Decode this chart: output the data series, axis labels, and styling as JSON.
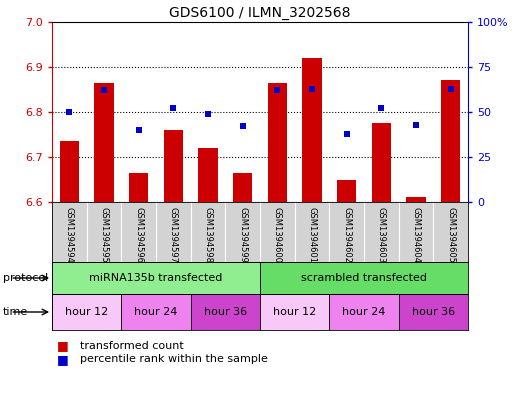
{
  "title": "GDS6100 / ILMN_3202568",
  "samples": [
    "GSM1394594",
    "GSM1394595",
    "GSM1394596",
    "GSM1394597",
    "GSM1394598",
    "GSM1394599",
    "GSM1394600",
    "GSM1394601",
    "GSM1394602",
    "GSM1394603",
    "GSM1394604",
    "GSM1394605"
  ],
  "red_values": [
    6.735,
    6.865,
    6.665,
    6.76,
    6.72,
    6.665,
    6.865,
    6.92,
    6.648,
    6.775,
    6.61,
    6.87
  ],
  "blue_values": [
    50,
    62,
    40,
    52,
    49,
    42,
    62,
    63,
    38,
    52,
    43,
    63
  ],
  "ylim_left": [
    6.6,
    7.0
  ],
  "ylim_right": [
    0,
    100
  ],
  "yticks_left": [
    6.6,
    6.7,
    6.8,
    6.9,
    7.0
  ],
  "yticks_right": [
    0,
    25,
    50,
    75,
    100
  ],
  "ytick_labels_right": [
    "0",
    "25",
    "50",
    "75",
    "100%"
  ],
  "protocol_groups": [
    {
      "label": "miRNA135b transfected",
      "start": 0,
      "end": 6,
      "color": "#90ee90"
    },
    {
      "label": "scrambled transfected",
      "start": 6,
      "end": 12,
      "color": "#66dd66"
    }
  ],
  "time_groups": [
    {
      "label": "hour 12",
      "start": 0,
      "end": 2,
      "color": "#f8c8f8"
    },
    {
      "label": "hour 24",
      "start": 2,
      "end": 4,
      "color": "#ee82ee"
    },
    {
      "label": "hour 36",
      "start": 4,
      "end": 6,
      "color": "#cc44cc"
    },
    {
      "label": "hour 12",
      "start": 6,
      "end": 8,
      "color": "#f8c8f8"
    },
    {
      "label": "hour 24",
      "start": 8,
      "end": 10,
      "color": "#ee82ee"
    },
    {
      "label": "hour 36",
      "start": 10,
      "end": 12,
      "color": "#cc44cc"
    }
  ],
  "bar_color": "#cc0000",
  "dot_color": "#0000cc",
  "bar_width": 0.55,
  "left_axis_color": "#cc0000",
  "right_axis_color": "#0000cc",
  "sample_bg": "#d3d3d3",
  "grid_yticks": [
    6.7,
    6.8,
    6.9
  ],
  "legend_items": [
    {
      "color": "#cc0000",
      "label": "transformed count"
    },
    {
      "color": "#0000cc",
      "label": "percentile rank within the sample"
    }
  ]
}
